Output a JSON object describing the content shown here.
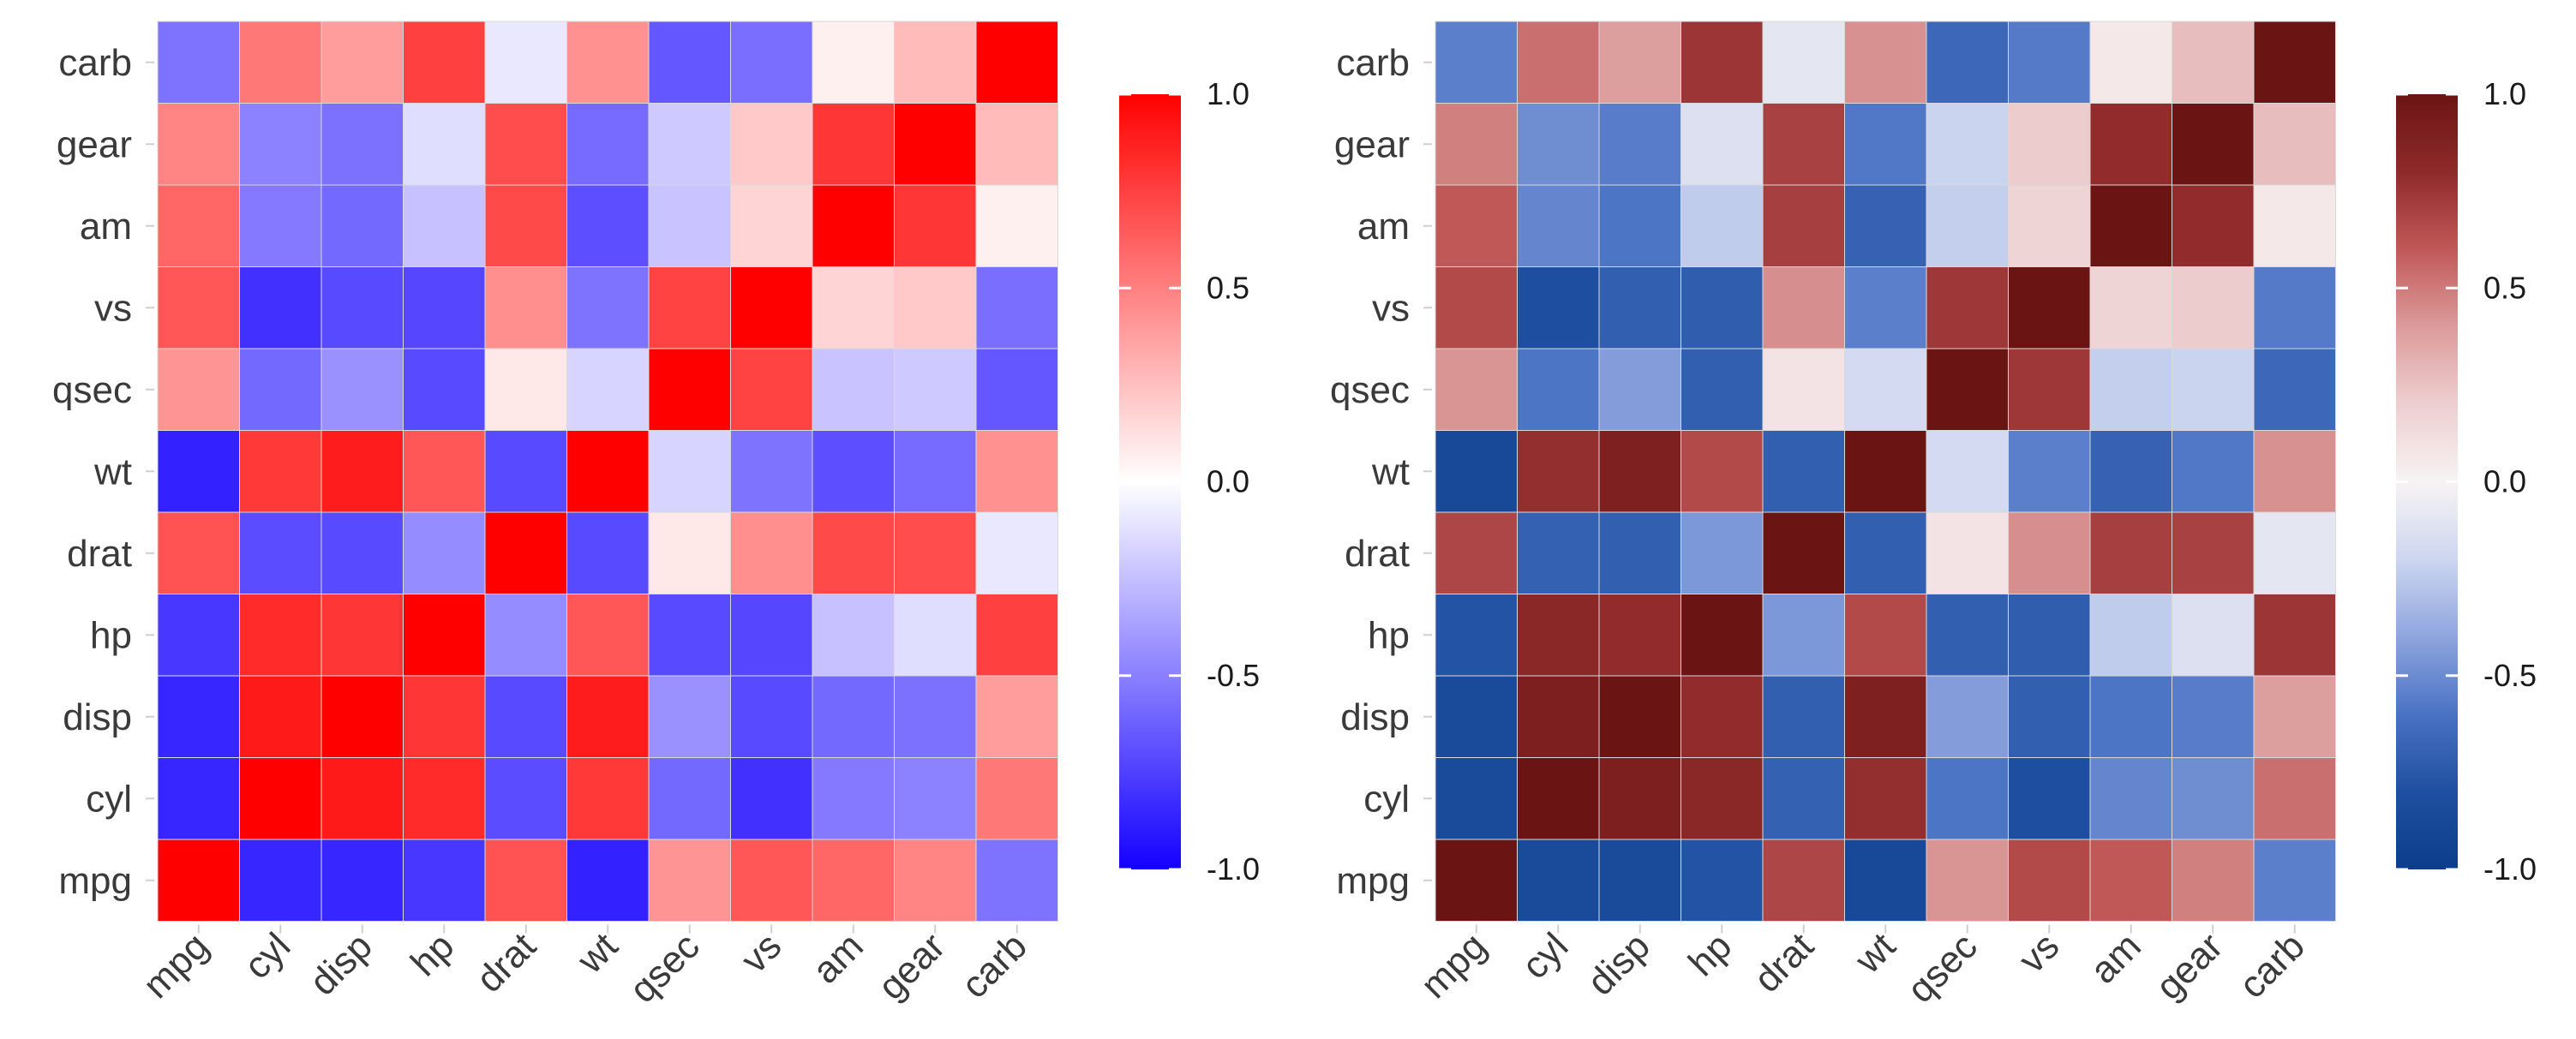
{
  "chart_data": [
    {
      "type": "heatmap",
      "palette": "blue-white-red",
      "colors": {
        "low": "#1400ff",
        "mid": "#ffffff",
        "high": "#ff0000"
      },
      "x_categories": [
        "mpg",
        "cyl",
        "disp",
        "hp",
        "drat",
        "wt",
        "qsec",
        "vs",
        "am",
        "gear",
        "carb"
      ],
      "y_categories": [
        "mpg",
        "cyl",
        "disp",
        "hp",
        "drat",
        "wt",
        "qsec",
        "vs",
        "am",
        "gear",
        "carb"
      ],
      "zlim": [
        -1,
        1
      ],
      "legend": {
        "position": "right",
        "ticks": [
          1.0,
          0.5,
          0.0,
          -0.5,
          -1.0
        ],
        "tick_labels": [
          "1.0",
          "0.5",
          "0.0",
          "-0.5",
          "-1.0"
        ]
      },
      "grid": false,
      "values": [
        [
          1.0,
          -0.85,
          -0.85,
          -0.78,
          0.68,
          -0.87,
          0.42,
          0.66,
          0.6,
          0.48,
          -0.55
        ],
        [
          -0.85,
          1.0,
          0.9,
          0.83,
          -0.7,
          0.78,
          -0.59,
          -0.81,
          -0.52,
          -0.49,
          0.53
        ],
        [
          -0.85,
          0.9,
          1.0,
          0.79,
          -0.71,
          0.89,
          -0.43,
          -0.71,
          -0.59,
          -0.56,
          0.39
        ],
        [
          -0.78,
          0.83,
          0.79,
          1.0,
          -0.45,
          0.66,
          -0.71,
          -0.72,
          -0.24,
          -0.13,
          0.75
        ],
        [
          0.68,
          -0.7,
          -0.71,
          -0.45,
          1.0,
          -0.71,
          0.09,
          0.44,
          0.71,
          0.7,
          -0.09
        ],
        [
          -0.87,
          0.78,
          0.89,
          0.66,
          -0.71,
          1.0,
          -0.17,
          -0.55,
          -0.69,
          -0.58,
          0.43
        ],
        [
          0.42,
          -0.59,
          -0.43,
          -0.71,
          0.09,
          -0.17,
          1.0,
          0.74,
          -0.23,
          -0.21,
          -0.66
        ],
        [
          0.66,
          -0.81,
          -0.71,
          -0.72,
          0.44,
          -0.55,
          0.74,
          1.0,
          0.17,
          0.21,
          -0.57
        ],
        [
          0.6,
          -0.52,
          -0.59,
          -0.24,
          0.71,
          -0.69,
          -0.23,
          0.17,
          1.0,
          0.79,
          0.06
        ],
        [
          0.48,
          -0.49,
          -0.56,
          -0.13,
          0.7,
          -0.58,
          -0.21,
          0.21,
          0.79,
          1.0,
          0.27
        ],
        [
          -0.55,
          0.53,
          0.39,
          0.75,
          -0.09,
          0.43,
          -0.66,
          -0.57,
          0.06,
          0.27,
          1.0
        ]
      ]
    },
    {
      "type": "heatmap",
      "palette": "RdBu",
      "colors": {
        "low": "#053061",
        "mid": "#f7f7f7",
        "high": "#67001f"
      },
      "x_categories": [
        "mpg",
        "cyl",
        "disp",
        "hp",
        "drat",
        "wt",
        "qsec",
        "vs",
        "am",
        "gear",
        "carb"
      ],
      "y_categories": [
        "mpg",
        "cyl",
        "disp",
        "hp",
        "drat",
        "wt",
        "qsec",
        "vs",
        "am",
        "gear",
        "carb"
      ],
      "zlim": [
        -1,
        1
      ],
      "legend": {
        "position": "right",
        "ticks": [
          1.0,
          0.5,
          0.0,
          -0.5,
          -1.0
        ],
        "tick_labels": [
          "1.0",
          "0.5",
          "0.0",
          "-0.5",
          "-1.0"
        ]
      },
      "grid": false,
      "values": [
        [
          1.0,
          -0.85,
          -0.85,
          -0.78,
          0.68,
          -0.87,
          0.42,
          0.66,
          0.6,
          0.48,
          -0.55
        ],
        [
          -0.85,
          1.0,
          0.9,
          0.83,
          -0.7,
          0.78,
          -0.59,
          -0.81,
          -0.52,
          -0.49,
          0.53
        ],
        [
          -0.85,
          0.9,
          1.0,
          0.79,
          -0.71,
          0.89,
          -0.43,
          -0.71,
          -0.59,
          -0.56,
          0.39
        ],
        [
          -0.78,
          0.83,
          0.79,
          1.0,
          -0.45,
          0.66,
          -0.71,
          -0.72,
          -0.24,
          -0.13,
          0.75
        ],
        [
          0.68,
          -0.7,
          -0.71,
          -0.45,
          1.0,
          -0.71,
          0.09,
          0.44,
          0.71,
          0.7,
          -0.09
        ],
        [
          -0.87,
          0.78,
          0.89,
          0.66,
          -0.71,
          1.0,
          -0.17,
          -0.55,
          -0.69,
          -0.58,
          0.43
        ],
        [
          0.42,
          -0.59,
          -0.43,
          -0.71,
          0.09,
          -0.17,
          1.0,
          0.74,
          -0.23,
          -0.21,
          -0.66
        ],
        [
          0.66,
          -0.81,
          -0.71,
          -0.72,
          0.44,
          -0.55,
          0.74,
          1.0,
          0.17,
          0.21,
          -0.57
        ],
        [
          0.6,
          -0.52,
          -0.59,
          -0.24,
          0.71,
          -0.69,
          -0.23,
          0.17,
          1.0,
          0.79,
          0.06
        ],
        [
          0.48,
          -0.49,
          -0.56,
          -0.13,
          0.7,
          -0.58,
          -0.21,
          0.21,
          0.79,
          1.0,
          0.27
        ],
        [
          -0.55,
          0.53,
          0.39,
          0.75,
          -0.09,
          0.43,
          -0.66,
          -0.57,
          0.06,
          0.27,
          1.0
        ]
      ]
    }
  ]
}
